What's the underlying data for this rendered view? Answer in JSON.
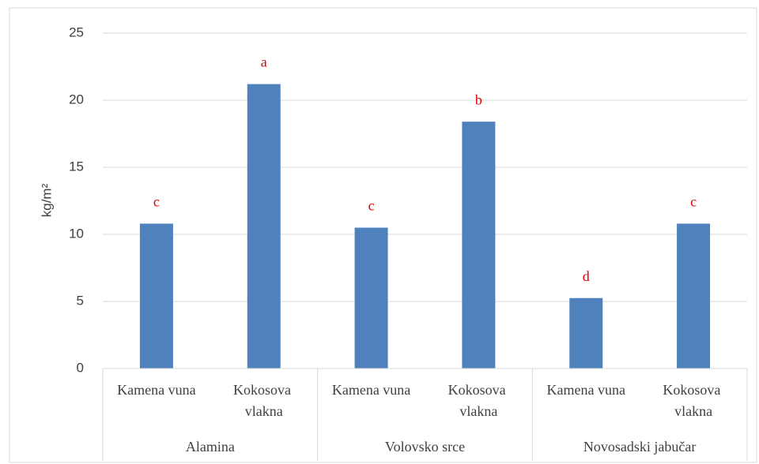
{
  "chart_data": {
    "type": "bar",
    "ylabel": "kg/m²",
    "categories": [
      "Kamena vuna",
      "Kokosova vlakna",
      "Kamena vuna",
      "Kokosova vlakna",
      "Kamena vuna",
      "Kokosova vlakna"
    ],
    "groups": [
      "Alamina",
      "Volovsko srce",
      "Novosadski jabučar"
    ],
    "values": [
      10.8,
      21.2,
      10.5,
      18.4,
      5.25,
      10.8
    ],
    "annotations": [
      "c",
      "a",
      "c",
      "b",
      "d",
      "c"
    ],
    "color": "#4f81bd",
    "annotation_color": "#e00000",
    "ylim": [
      0,
      25
    ],
    "yticks": [
      0,
      5,
      10,
      15,
      20,
      25
    ],
    "grid": true
  }
}
